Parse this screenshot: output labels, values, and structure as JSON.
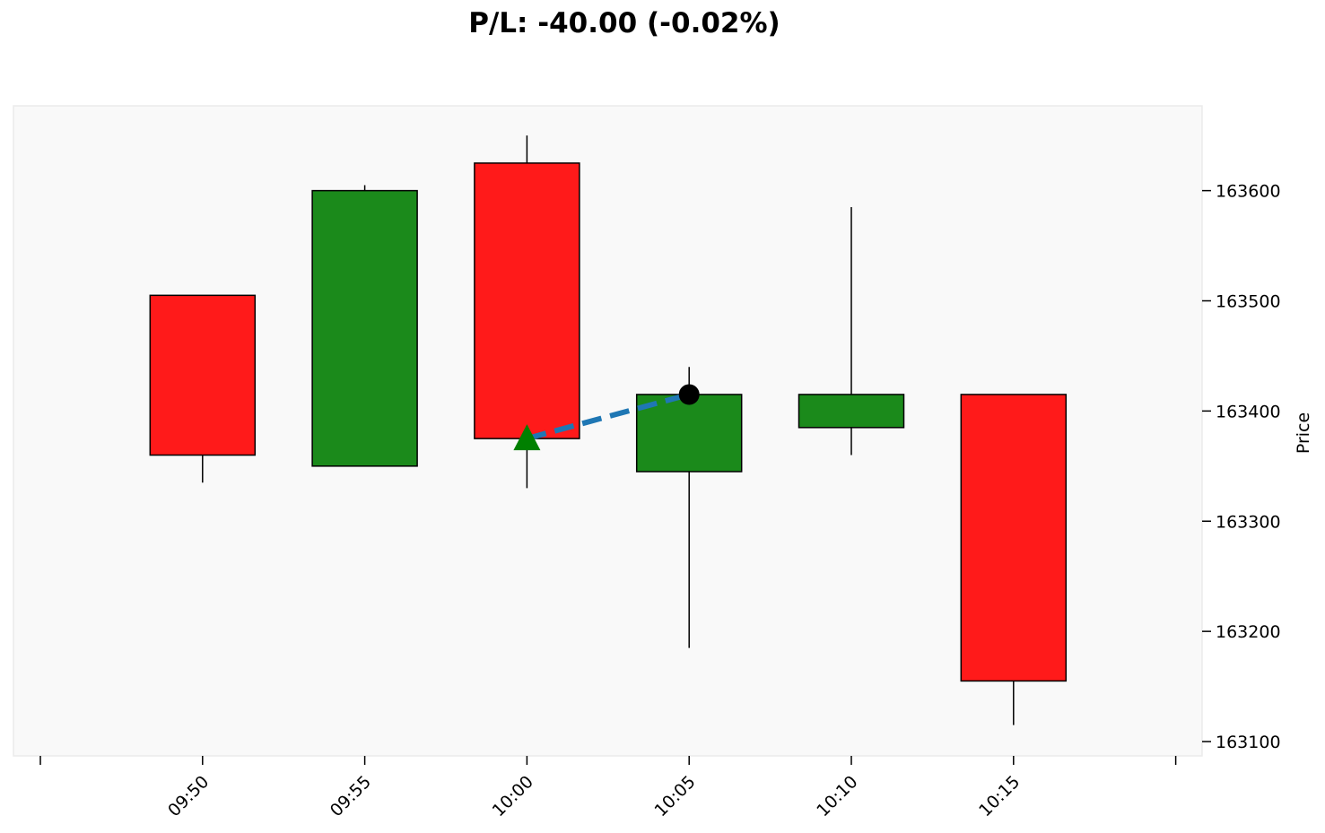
{
  "title": "P/L: -40.00 (-0.02%)",
  "chart_data": {
    "type": "candlestick",
    "title": "P/L: -40.00 (-0.02%)",
    "xlabel": "",
    "ylabel": "Price",
    "ylim": [
      163087,
      163677
    ],
    "yticks": [
      163100,
      163200,
      163300,
      163400,
      163500,
      163600
    ],
    "ytick_labels": [
      "163100",
      "163200",
      "163300",
      "163400",
      "163500",
      "163600"
    ],
    "xticks": [
      "09:45",
      "09:50",
      "09:55",
      "10:00",
      "10:05",
      "10:10",
      "10:15",
      "10:20"
    ],
    "xtick_labels": [
      "",
      "09:50",
      "09:55",
      "10:00",
      "10:05",
      "10:10",
      "10:15",
      ""
    ],
    "candles": [
      {
        "time": "09:50",
        "open": 163505,
        "high": 163505,
        "low": 163335,
        "close": 163360,
        "direction": "down"
      },
      {
        "time": "09:55",
        "open": 163350,
        "high": 163605,
        "low": 163350,
        "close": 163600,
        "direction": "up"
      },
      {
        "time": "10:00",
        "open": 163625,
        "high": 163650,
        "low": 163330,
        "close": 163375,
        "direction": "down"
      },
      {
        "time": "10:05",
        "open": 163345,
        "high": 163440,
        "low": 163185,
        "close": 163415,
        "direction": "up"
      },
      {
        "time": "10:10",
        "open": 163385,
        "high": 163585,
        "low": 163360,
        "close": 163415,
        "direction": "up"
      },
      {
        "time": "10:15",
        "open": 163415,
        "high": 163415,
        "low": 163115,
        "close": 163155,
        "direction": "down"
      }
    ],
    "trade": {
      "entry": {
        "time": "10:00",
        "price": 163375,
        "marker": "triangle-up"
      },
      "exit": {
        "time": "10:05",
        "price": 163415,
        "marker": "circle"
      }
    },
    "grid": false,
    "legend": "none",
    "colors": {
      "up": "#1b8a1b",
      "down": "#ff1a1a",
      "entry_marker": "#008000",
      "exit_marker": "#000000",
      "trade_line": "#1f77b4",
      "plot_background": "#f9f9f9"
    }
  }
}
